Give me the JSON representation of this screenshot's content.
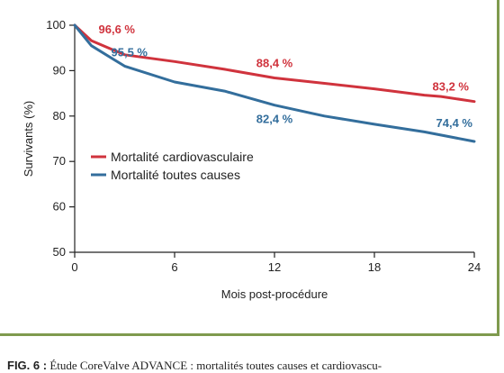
{
  "chart_data": {
    "type": "line",
    "xlabel": "Mois post-procédure",
    "ylabel": "Survivants (%)",
    "xlim": [
      0,
      24
    ],
    "ylim": [
      50,
      100
    ],
    "xticks": [
      "0",
      "6",
      "12",
      "18",
      "24"
    ],
    "yticks": [
      "50",
      "60",
      "70",
      "80",
      "90",
      "100"
    ],
    "legend_position": "left-middle",
    "series": [
      {
        "name": "Mortalité cardiovasculaire",
        "color": "#d0333d",
        "points": [
          [
            0,
            100
          ],
          [
            1,
            96.6
          ],
          [
            3,
            93.5
          ],
          [
            6,
            92
          ],
          [
            9,
            90.3
          ],
          [
            12,
            88.4
          ],
          [
            15,
            87.2
          ],
          [
            18,
            86
          ],
          [
            21,
            84.6
          ],
          [
            22,
            84.3
          ],
          [
            24,
            83.2
          ]
        ],
        "labels": [
          {
            "x": 1,
            "y": 96.6,
            "text": "96,6 %"
          },
          {
            "x": 12,
            "y": 88.4,
            "text": "88,4 %"
          },
          {
            "x": 24,
            "y": 83.2,
            "text": "83,2 %"
          }
        ]
      },
      {
        "name": "Mortalité toutes causes",
        "color": "#336e9c",
        "points": [
          [
            0,
            100
          ],
          [
            1,
            95.5
          ],
          [
            3,
            91
          ],
          [
            6,
            87.5
          ],
          [
            9,
            85.5
          ],
          [
            12,
            82.4
          ],
          [
            15,
            80
          ],
          [
            18,
            78.2
          ],
          [
            21,
            76.5
          ],
          [
            24,
            74.4
          ]
        ],
        "labels": [
          {
            "x": 1,
            "y": 95.5,
            "text": "95,5 %"
          },
          {
            "x": 12,
            "y": 82.4,
            "text": "82,4 %"
          },
          {
            "x": 24,
            "y": 74.4,
            "text": "74,4 %"
          }
        ]
      }
    ]
  },
  "caption": {
    "prefix": "FIG. 6 :",
    "text": "Étude CoreValve ADVANCE : mortalités toutes causes et cardiovascu-"
  }
}
